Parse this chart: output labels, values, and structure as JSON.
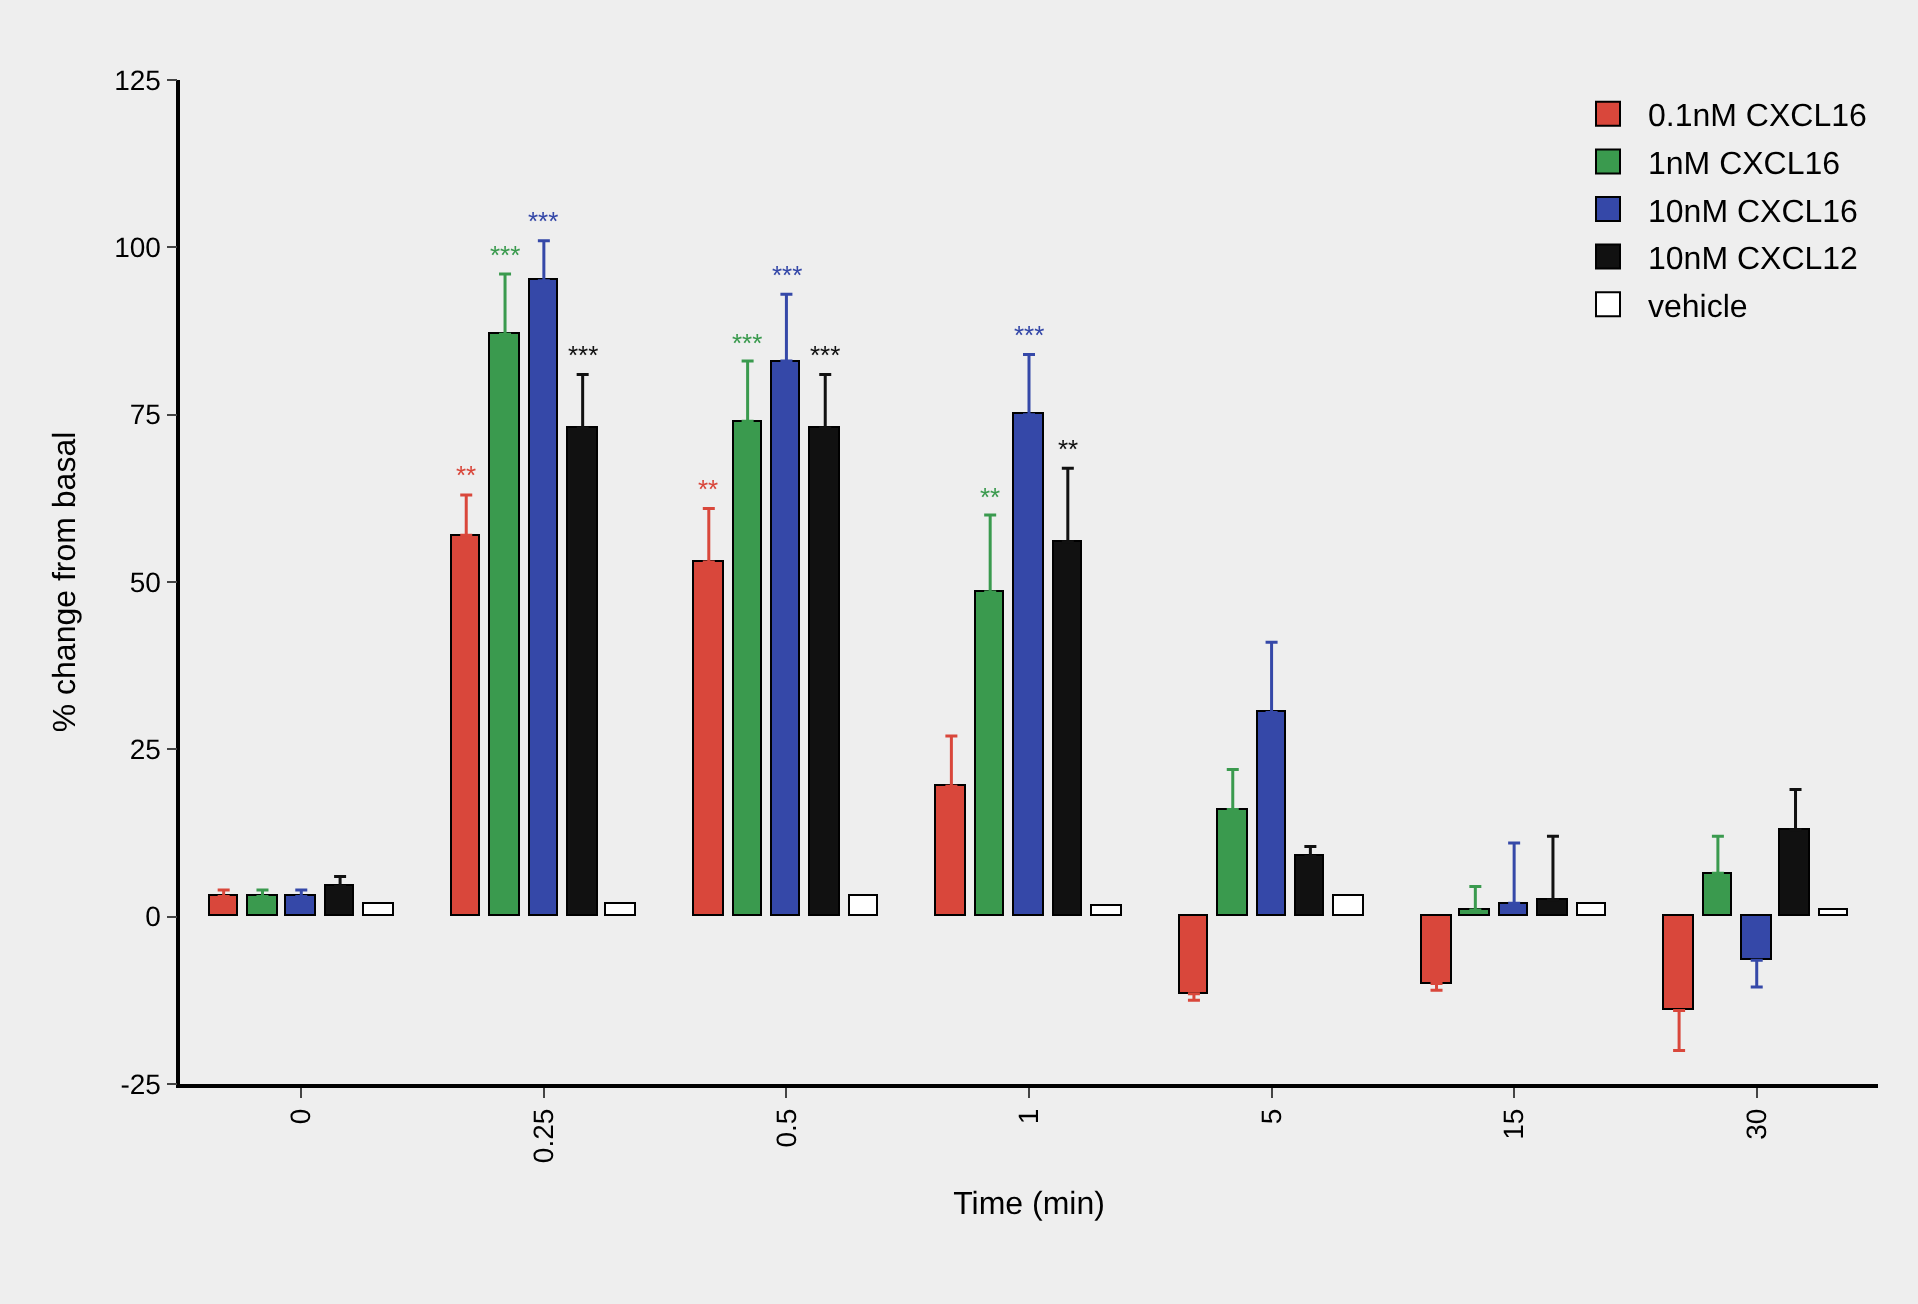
{
  "chart_data": {
    "type": "bar",
    "xlabel": "Time (min)",
    "ylabel": "% change from basal",
    "categories": [
      "0",
      "0.25",
      "0.5",
      "1",
      "5",
      "15",
      "30"
    ],
    "ylim": [
      -25,
      125
    ],
    "yticks": [
      -25,
      0,
      25,
      50,
      75,
      100,
      125
    ],
    "grid": false,
    "legend": "top right",
    "series": [
      {
        "name": "0.1nM CXCL16",
        "color": "#d9473b",
        "values": [
          3,
          57,
          53,
          19.5,
          -11.5,
          -10,
          -14
        ],
        "errors": [
          [
            3,
            4
          ],
          [
            57,
            63
          ],
          [
            53,
            61
          ],
          [
            19.5,
            27
          ],
          [
            -12.5,
            -11.5
          ],
          [
            -11,
            -10
          ],
          [
            -20,
            -14
          ]
        ],
        "value_labels": [
          null,
          "**",
          "**",
          null,
          null,
          null,
          null
        ]
      },
      {
        "name": "1nM CXCL16",
        "color": "#3a9a4e",
        "values": [
          3,
          87,
          74,
          48.5,
          16,
          1,
          6.5
        ],
        "errors": [
          [
            3,
            4
          ],
          [
            87,
            96
          ],
          [
            74,
            83
          ],
          [
            48.5,
            60
          ],
          [
            16,
            22
          ],
          [
            1,
            4.5
          ],
          [
            6.5,
            12
          ]
        ],
        "value_labels": [
          null,
          "***",
          "***",
          "**",
          null,
          null,
          null
        ]
      },
      {
        "name": "10nM CXCL16",
        "color": "#3548a8",
        "values": [
          3,
          95,
          83,
          75,
          30.5,
          2,
          -6.5
        ],
        "errors": [
          [
            3,
            4
          ],
          [
            95,
            101
          ],
          [
            83,
            93
          ],
          [
            75,
            84
          ],
          [
            30.5,
            41
          ],
          [
            2,
            11
          ],
          [
            -10.5,
            -6.5
          ]
        ],
        "value_labels": [
          null,
          "***",
          "***",
          "***",
          null,
          null,
          null
        ]
      },
      {
        "name": "10nM CXCL12",
        "color": "#111111",
        "values": [
          4.5,
          73,
          73,
          56,
          9,
          2.5,
          13
        ],
        "errors": [
          [
            4.5,
            6
          ],
          [
            73,
            81
          ],
          [
            73,
            81
          ],
          [
            56,
            67
          ],
          [
            9,
            10.5
          ],
          [
            2.5,
            12
          ],
          [
            13,
            19
          ]
        ],
        "value_labels": [
          null,
          "***",
          "***",
          "**",
          null,
          null,
          null
        ]
      },
      {
        "name": "vehicle",
        "color": "#ffffff",
        "values": [
          2,
          2,
          3,
          1.5,
          3,
          2,
          1
        ]
      }
    ]
  }
}
